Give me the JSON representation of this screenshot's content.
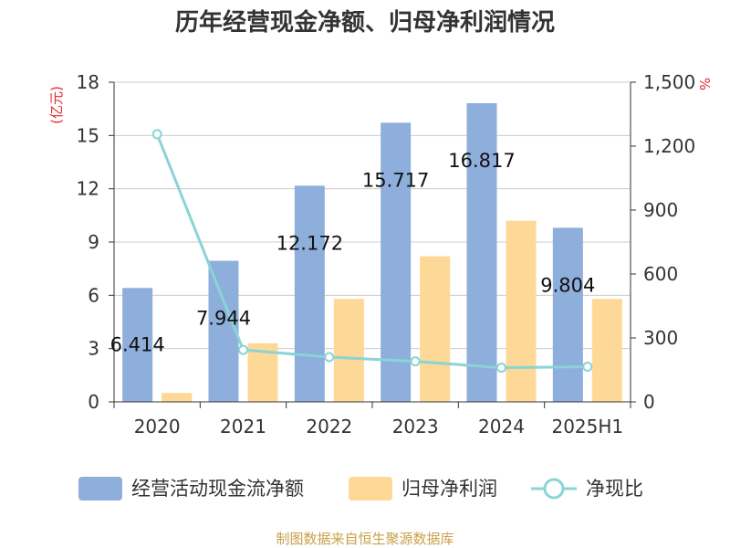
{
  "chart_data": {
    "type": "bar",
    "title": "历年经营现金净额、归母净利润情况",
    "categories": [
      "2020",
      "2021",
      "2022",
      "2023",
      "2024",
      "2025H1"
    ],
    "y_left": {
      "unit": "(亿元)",
      "ylim": [
        0,
        18
      ],
      "ticks": [
        0,
        3,
        6,
        9,
        12,
        15,
        18
      ]
    },
    "y_right": {
      "unit": "%",
      "ylim": [
        0,
        1500
      ],
      "ticks": [
        0,
        300,
        600,
        900,
        1200,
        1500
      ],
      "tick_labels": [
        "0",
        "300",
        "600",
        "900",
        "1,200",
        "1,500"
      ]
    },
    "series": [
      {
        "name": "经营活动现金流净额",
        "type": "bar",
        "axis": "left",
        "color": "#8eaedb",
        "values": [
          6.414,
          7.944,
          12.172,
          15.717,
          16.817,
          9.804
        ],
        "labels": [
          "6.414",
          "7.944",
          "12.172",
          "15.717",
          "16.817",
          "9.804"
        ]
      },
      {
        "name": "归母净利润",
        "type": "bar",
        "axis": "left",
        "color": "#fdd896",
        "values": [
          0.5,
          3.3,
          5.8,
          8.2,
          10.2,
          5.8
        ]
      },
      {
        "name": "净现比",
        "type": "line",
        "axis": "right",
        "color": "#8ad4d6",
        "values": [
          1256,
          244,
          210,
          190,
          160,
          165
        ]
      }
    ],
    "grid": true,
    "legend": "bottom"
  },
  "source": "制图数据来自恒生聚源数据库"
}
